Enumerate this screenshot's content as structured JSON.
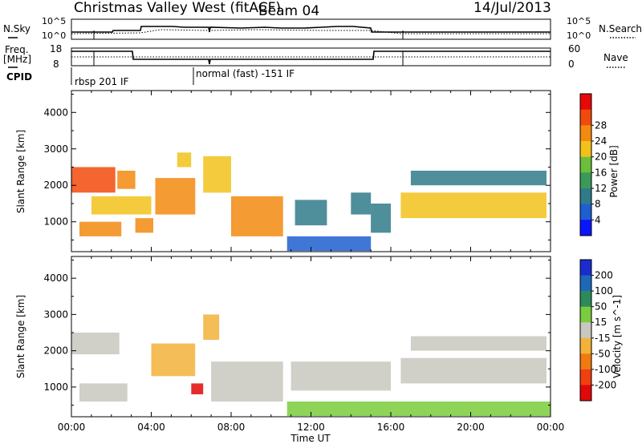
{
  "header": {
    "title": "Christmas Valley West (fitACF)",
    "beam": "Beam 04",
    "date": "14/Jul/2013"
  },
  "params_panel": {
    "left_labels": [
      "N.Sky",
      "Freq.",
      "[MHz]",
      "CPID"
    ],
    "right_labels": [
      "N.Search",
      "Nave"
    ],
    "nsky_ticks": [
      "10^5",
      "10^0"
    ],
    "nsearch_ticks": [
      "10^5",
      "10^0"
    ],
    "freq_ticks": [
      "18",
      "8"
    ],
    "nave_ticks": [
      "60",
      "0"
    ],
    "cpid_entries": [
      "rbsp 201 IF",
      "normal (fast) -151 IF"
    ]
  },
  "colors": {
    "power_scale": [
      "#0b14ff",
      "#1e5fd0",
      "#2f7b8a",
      "#3a9a58",
      "#6cbf3c",
      "#f2c21a",
      "#f28a10",
      "#f24a0a",
      "#e80808"
    ],
    "velocity_scale": [
      "#1a2ccf",
      "#1e68b8",
      "#2e8a5a",
      "#79cc3c",
      "#c8c8c0",
      "#f2b23a",
      "#f07a10",
      "#f04010",
      "#e00808"
    ]
  },
  "chart_data": [
    {
      "type": "heatmap",
      "name": "Power",
      "xlabel": "",
      "ylabel": "Slant Range [km]",
      "xlim": [
        0,
        24
      ],
      "ylim": [
        180,
        4600
      ],
      "yticks": [
        1000,
        2000,
        3000,
        4000
      ],
      "colorbar": {
        "label": "Power [dB]",
        "range": [
          0,
          32
        ],
        "ticks": [
          "4",
          "8",
          "12",
          "16",
          "20",
          "24",
          "28"
        ]
      },
      "features": [
        {
          "x": [
            0.0,
            2.2
          ],
          "y": [
            1800,
            2500
          ],
          "value": 28
        },
        {
          "x": [
            0.4,
            2.5
          ],
          "y": [
            600,
            1000
          ],
          "value": 24
        },
        {
          "x": [
            2.3,
            3.2
          ],
          "y": [
            1900,
            2400
          ],
          "value": 24
        },
        {
          "x": [
            1.0,
            4.0
          ],
          "y": [
            1200,
            1700
          ],
          "value": 20
        },
        {
          "x": [
            3.2,
            4.1
          ],
          "y": [
            700,
            1100
          ],
          "value": 22
        },
        {
          "x": [
            4.2,
            6.2
          ],
          "y": [
            1200,
            2200
          ],
          "value": 24
        },
        {
          "x": [
            5.3,
            6.0
          ],
          "y": [
            2500,
            2900
          ],
          "value": 20
        },
        {
          "x": [
            6.6,
            8.0
          ],
          "y": [
            1800,
            2800
          ],
          "value": 18
        },
        {
          "x": [
            8.0,
            10.6
          ],
          "y": [
            600,
            1700
          ],
          "value": 24
        },
        {
          "x": [
            10.8,
            15.0
          ],
          "y": [
            200,
            600
          ],
          "value": 6
        },
        {
          "x": [
            11.2,
            12.8
          ],
          "y": [
            900,
            1600
          ],
          "value": 10
        },
        {
          "x": [
            14.0,
            15.0
          ],
          "y": [
            1200,
            1800
          ],
          "value": 10
        },
        {
          "x": [
            16.5,
            23.8
          ],
          "y": [
            1100,
            1800
          ],
          "value": 18
        },
        {
          "x": [
            17.0,
            23.8
          ],
          "y": [
            2000,
            2400
          ],
          "value": 8
        },
        {
          "x": [
            15.0,
            16.0
          ],
          "y": [
            700,
            1500
          ],
          "value": 8
        }
      ]
    },
    {
      "type": "heatmap",
      "name": "Velocity",
      "xlabel": "Time UT",
      "ylabel": "Slant Range [km]",
      "xlim": [
        0,
        24
      ],
      "ylim": [
        180,
        4600
      ],
      "xticks": [
        "00:00",
        "04:00",
        "08:00",
        "12:00",
        "16:00",
        "20:00",
        "00:00"
      ],
      "yticks": [
        1000,
        2000,
        3000,
        4000
      ],
      "colorbar": {
        "label": "Velocity [m s^-1]",
        "range": [
          -250,
          250
        ],
        "ticks": [
          "200",
          "100",
          "50",
          "15",
          "-15",
          "-50",
          "-100",
          "-200"
        ]
      },
      "features": [
        {
          "x": [
            0.0,
            2.4
          ],
          "y": [
            1900,
            2500
          ],
          "value": 0
        },
        {
          "x": [
            0.4,
            2.8
          ],
          "y": [
            600,
            1100
          ],
          "value": 0
        },
        {
          "x": [
            4.0,
            6.2
          ],
          "y": [
            1300,
            2200
          ],
          "value": -60
        },
        {
          "x": [
            6.0,
            6.6
          ],
          "y": [
            800,
            1100
          ],
          "value": -220
        },
        {
          "x": [
            6.6,
            7.4
          ],
          "y": [
            2300,
            3000
          ],
          "value": -60
        },
        {
          "x": [
            7.0,
            10.6
          ],
          "y": [
            600,
            1700
          ],
          "value": 0
        },
        {
          "x": [
            10.8,
            24.0
          ],
          "y": [
            200,
            600
          ],
          "value": 40
        },
        {
          "x": [
            11.0,
            16.0
          ],
          "y": [
            900,
            1700
          ],
          "value": 0
        },
        {
          "x": [
            16.5,
            23.8
          ],
          "y": [
            1100,
            1800
          ],
          "value": 0
        },
        {
          "x": [
            17.0,
            23.8
          ],
          "y": [
            2000,
            2400
          ],
          "value": 0
        }
      ]
    }
  ]
}
